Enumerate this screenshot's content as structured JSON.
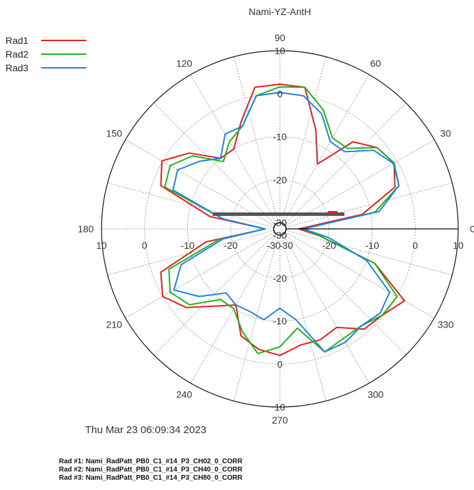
{
  "chart_data": {
    "type": "polar-line",
    "title": "Nami-YZ-AntH",
    "r_range": [
      -30,
      10
    ],
    "r_ticks": [
      -30,
      -20,
      -10,
      0,
      10
    ],
    "angle_labels": [
      0,
      30,
      60,
      90,
      120,
      150,
      180,
      210,
      240,
      270,
      300,
      330
    ],
    "angles_deg": [
      0,
      10,
      20,
      30,
      40,
      50,
      60,
      70,
      80,
      90,
      100,
      110,
      120,
      130,
      140,
      150,
      160,
      170,
      180,
      190,
      200,
      210,
      220,
      230,
      240,
      250,
      260,
      270,
      280,
      290,
      300,
      310,
      320,
      330,
      340,
      350
    ],
    "series": [
      {
        "name": "Rad1",
        "color": "#e61e1e",
        "values": [
          -27,
          -12,
          -3,
          -0.8,
          -2,
          -5,
          -14,
          -7,
          2,
          2.2,
          2,
          -5,
          -10,
          -10,
          -4,
          0.2,
          -2,
          -15,
          -28,
          -14,
          -2,
          0,
          -3,
          -8,
          -11,
          -5,
          -3,
          -2,
          -4,
          -4,
          -5,
          -1,
          -0.3,
          2,
          -8,
          -22
        ]
      },
      {
        "name": "Rad2",
        "color": "#1eb41e",
        "values": [
          -26,
          -9,
          -2,
          -0.8,
          -2,
          -7,
          -7,
          -2,
          2,
          1.6,
          0,
          -6,
          -8,
          -11,
          -5,
          -2,
          -3,
          -18,
          -28,
          -17,
          -4,
          -2,
          -4,
          -10,
          -10,
          -6,
          -2,
          -4,
          -8,
          -1,
          -2,
          -2,
          -0.3,
          0,
          -8,
          -22
        ]
      },
      {
        "name": "Rad3",
        "color": "#1e82e6",
        "values": [
          -26,
          -8,
          -2,
          -1,
          -3,
          -8,
          -8,
          -3,
          0,
          0.3,
          0,
          -6,
          -6,
          -10,
          -7,
          -4,
          -5,
          -18,
          -28,
          -18,
          -7,
          -3,
          -7,
          -12,
          -11,
          -11,
          -10,
          -13,
          -10,
          -1,
          -1,
          -2,
          -1,
          -2,
          -10,
          -20
        ]
      }
    ]
  },
  "timestamp": "Thu Mar 23 06:09:34 2023",
  "files": [
    "Rad #1: Nami_RadPatt_PB0_C1_#14_P3_CH02_0_CORR",
    "Rad #2: Nami_RadPatt_PB0_C1_#14_P3_CH40_0_CORR",
    "Rad #3: Nami_RadPatt_PB0_C1_#14_P3_CH80_0_CORR"
  ]
}
